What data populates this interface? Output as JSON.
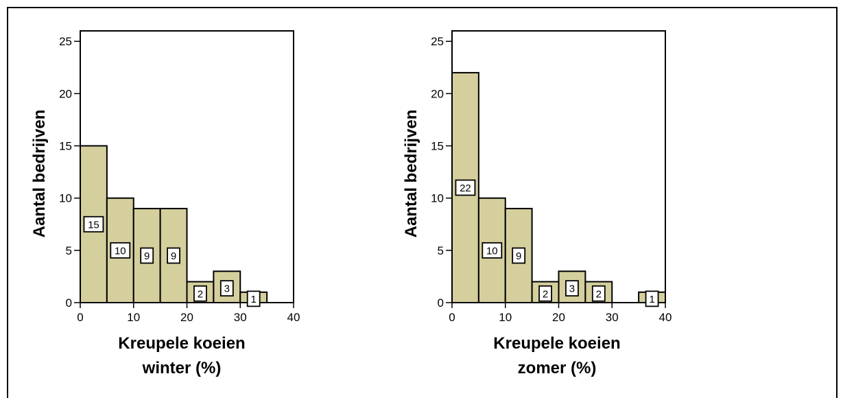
{
  "chart_data": [
    {
      "type": "histogram",
      "bin_edges": [
        0,
        5,
        10,
        15,
        20,
        25,
        30,
        35,
        40
      ],
      "values": [
        15,
        10,
        9,
        9,
        2,
        3,
        1,
        0
      ],
      "data_labels": [
        "15",
        "10",
        "9",
        "9",
        "2",
        "3",
        "1",
        ""
      ],
      "xlim": [
        0,
        40
      ],
      "ylim": [
        0,
        26
      ],
      "x_ticks": [
        "0",
        "10",
        "20",
        "30",
        "40"
      ],
      "y_ticks": [
        "0",
        "5",
        "10",
        "15",
        "20",
        "25"
      ],
      "xlabel_line1": "Kreupele koeien",
      "xlabel_line2": "winter (%)",
      "ylabel": "Aantal bedrijven",
      "bar_color": "#d4cf9d"
    },
    {
      "type": "histogram",
      "bin_edges": [
        0,
        5,
        10,
        15,
        20,
        25,
        30,
        35,
        40
      ],
      "values": [
        22,
        10,
        9,
        2,
        3,
        2,
        0,
        1
      ],
      "data_labels": [
        "22",
        "10",
        "9",
        "2",
        "3",
        "2",
        "",
        "1"
      ],
      "xlim": [
        0,
        40
      ],
      "ylim": [
        0,
        26
      ],
      "x_ticks": [
        "0",
        "10",
        "20",
        "30",
        "40"
      ],
      "y_ticks": [
        "0",
        "5",
        "10",
        "15",
        "20",
        "25"
      ],
      "xlabel_line1": "Kreupele koeien",
      "xlabel_line2": "zomer (%)",
      "ylabel": "Aantal bedrijven",
      "bar_color": "#d4cf9d"
    }
  ]
}
